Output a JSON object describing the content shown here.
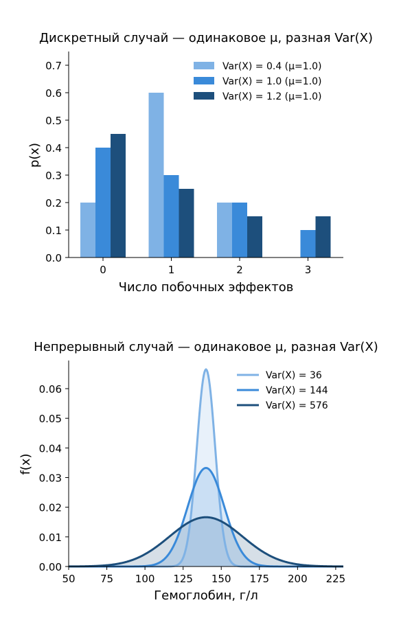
{
  "chart_data": [
    {
      "type": "bar",
      "title": "Дискретный случай — одинаковое μ, разная Var(X)",
      "xlabel": "Число побочных эффектов",
      "ylabel": "p(x)",
      "categories": [
        "0",
        "1",
        "2",
        "3"
      ],
      "ylim": [
        0,
        0.75
      ],
      "yticks": [
        "0.0",
        "0.1",
        "0.2",
        "0.3",
        "0.4",
        "0.5",
        "0.6",
        "0.7"
      ],
      "legend_position": "top-right",
      "series": [
        {
          "name": "Var(X) = 0.4  (μ=1.0)",
          "color": "#7fb2e5",
          "values": [
            0.2,
            0.6,
            0.2,
            0.0
          ]
        },
        {
          "name": "Var(X) = 1.0  (μ=1.0)",
          "color": "#3a8ad9",
          "values": [
            0.4,
            0.3,
            0.2,
            0.1
          ]
        },
        {
          "name": "Var(X) = 1.2  (μ=1.0)",
          "color": "#1d4f7c",
          "values": [
            0.45,
            0.25,
            0.15,
            0.15
          ]
        }
      ]
    },
    {
      "type": "area",
      "title": "Непрерывный случай — одинаковое μ, разная Var(X)",
      "xlabel": "Гемоглобин, г/л",
      "ylabel": "f(x)",
      "xlim": [
        50,
        230
      ],
      "ylim": [
        0,
        0.0695
      ],
      "xticks": [
        "50",
        "75",
        "100",
        "125",
        "150",
        "175",
        "200",
        "225"
      ],
      "yticks": [
        "0.00",
        "0.01",
        "0.02",
        "0.03",
        "0.04",
        "0.05",
        "0.06"
      ],
      "legend_position": "top-right",
      "series": [
        {
          "name": "Var(X) = 36",
          "color": "#7fb2e5",
          "mean": 140,
          "variance": 36,
          "peak": 0.0665
        },
        {
          "name": "Var(X) = 144",
          "color": "#3a8ad9",
          "mean": 140,
          "variance": 144,
          "peak": 0.0332
        },
        {
          "name": "Var(X) = 576",
          "color": "#1d4f7c",
          "mean": 140,
          "variance": 576,
          "peak": 0.0166
        }
      ]
    }
  ]
}
